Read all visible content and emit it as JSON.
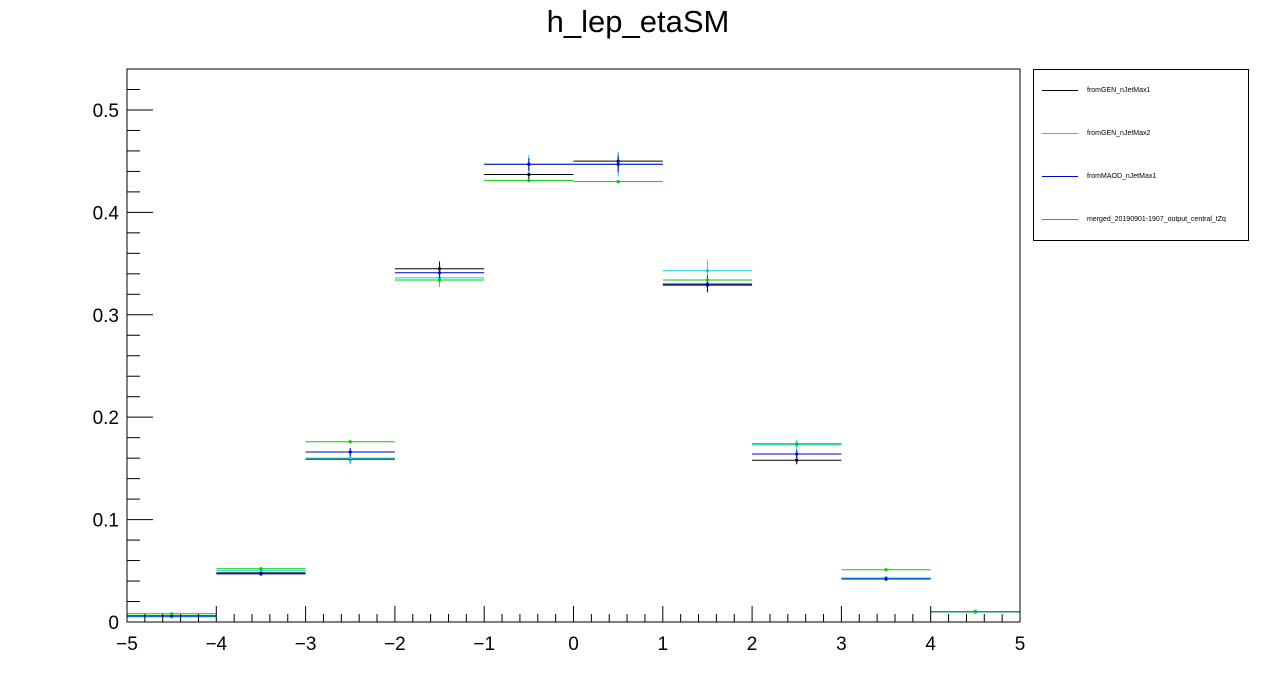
{
  "chart_data": {
    "type": "scatter",
    "title": "h_lep_etaSM",
    "xlabel": "",
    "ylabel": "",
    "xlim": [
      -5,
      5
    ],
    "ylim": [
      0,
      0.54
    ],
    "x_ticks": [
      -5,
      -4,
      -3,
      -2,
      -1,
      0,
      1,
      2,
      3,
      4,
      5
    ],
    "y_ticks": [
      0,
      0.1,
      0.2,
      0.3,
      0.4,
      0.5
    ],
    "x_tick_labels": [
      "−5",
      "−4",
      "−3",
      "−2",
      "−1",
      "0",
      "1",
      "2",
      "3",
      "4",
      "5"
    ],
    "y_tick_labels": [
      "0",
      "0.1",
      "0.2",
      "0.3",
      "0.4",
      "0.5"
    ],
    "bin_edges": [
      -5,
      -4,
      -3,
      -2,
      -1,
      0,
      1,
      2,
      3,
      4,
      5
    ],
    "grid": false,
    "legend_position": "outside-right-top",
    "series": [
      {
        "name": "fromGEN_nJetMax1",
        "color": "#000000",
        "values": [
          0.006,
          0.048,
          0.159,
          0.345,
          0.437,
          0.45,
          0.329,
          0.158,
          0.043,
          0.01
        ],
        "errors": [
          0.001,
          0.002,
          0.004,
          0.007,
          0.007,
          0.007,
          0.007,
          0.004,
          0.002,
          0.001
        ]
      },
      {
        "name": "fromGEN_nJetMax2",
        "color": "#00d8d8",
        "values": [
          0.005,
          0.05,
          0.16,
          0.336,
          0.447,
          0.447,
          0.343,
          0.173,
          0.043,
          0.01
        ],
        "errors": [
          0.001,
          0.003,
          0.006,
          0.009,
          0.009,
          0.012,
          0.01,
          0.005,
          0.002,
          0.001
        ]
      },
      {
        "name": "fromMAOD_nJetMax1",
        "color": "#0000d0",
        "values": [
          0.006,
          0.047,
          0.166,
          0.341,
          0.447,
          0.447,
          0.33,
          0.164,
          0.042,
          0.01
        ],
        "errors": [
          0.001,
          0.002,
          0.004,
          0.007,
          0.006,
          0.008,
          0.008,
          0.004,
          0.002,
          0.001
        ]
      },
      {
        "name": "merged_20190901-1907_output_central_tZq",
        "color": "#00cc00",
        "values": [
          0.008,
          0.052,
          0.176,
          0.334,
          0.431,
          0.43,
          0.334,
          0.174,
          0.051,
          0.01
        ],
        "errors": [
          0.001,
          0.001,
          0.001,
          0.002,
          0.001,
          0.001,
          0.002,
          0.001,
          0.001,
          0.001
        ]
      }
    ]
  }
}
